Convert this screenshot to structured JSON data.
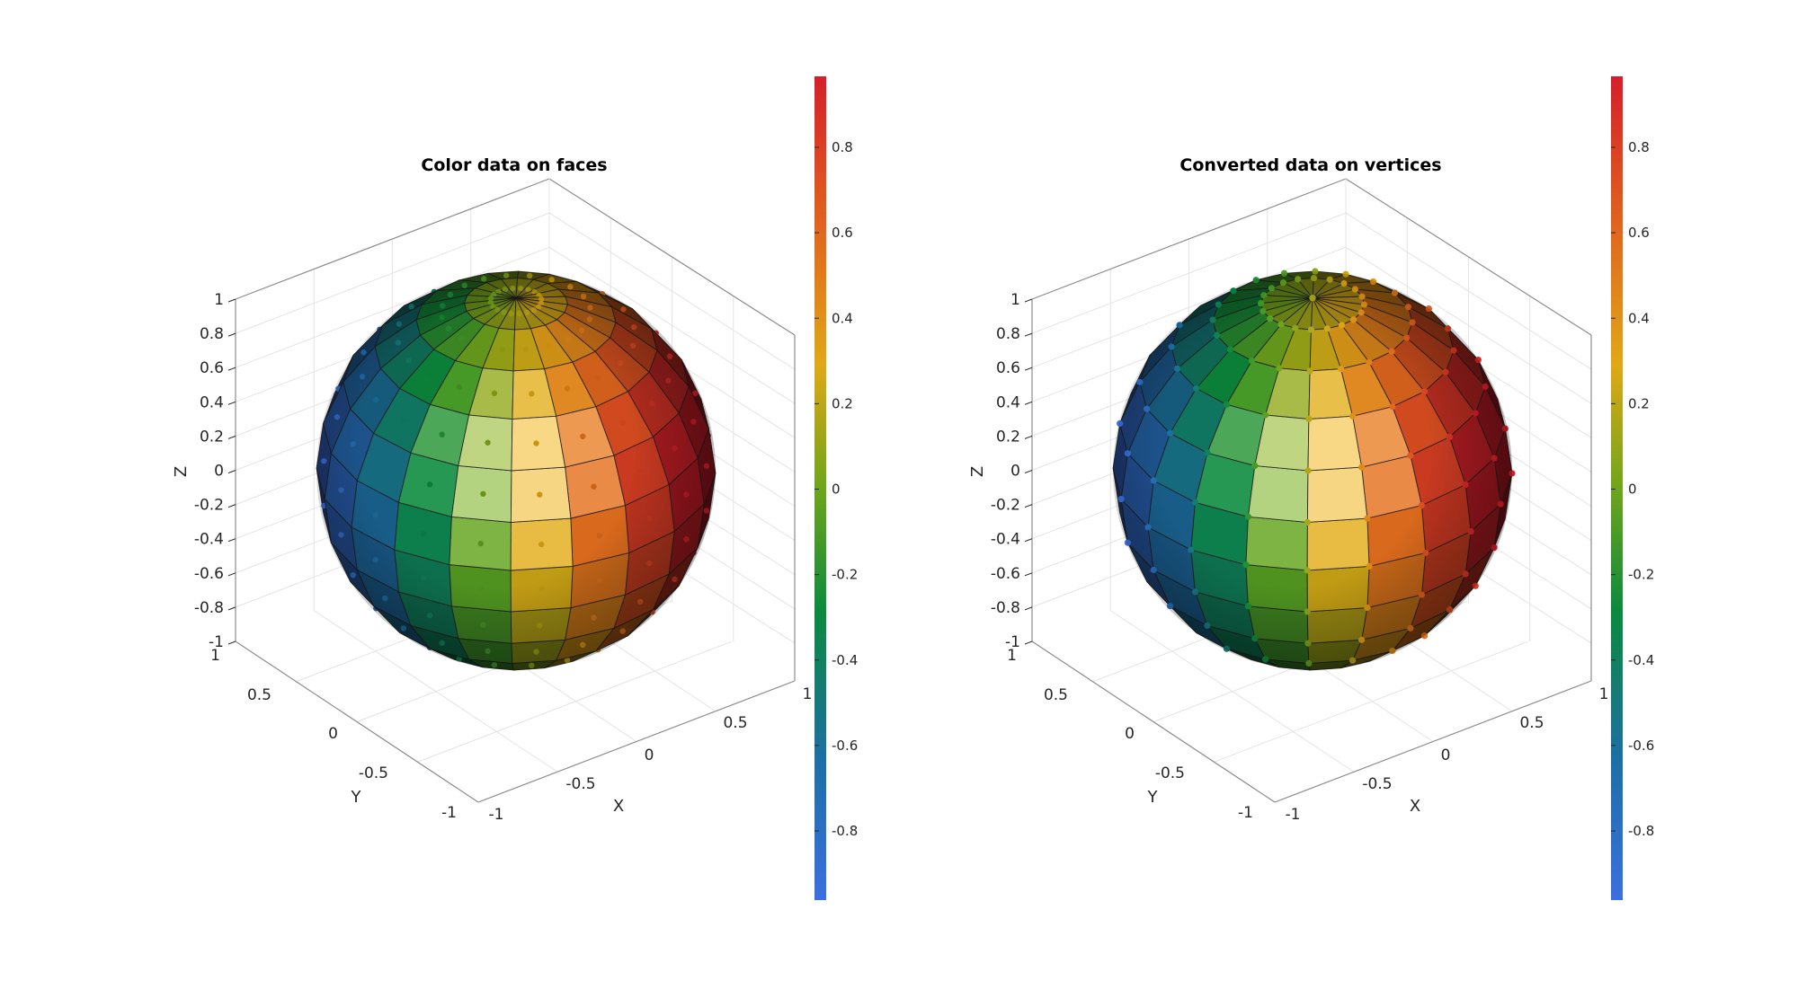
{
  "figure": {
    "panels": [
      {
        "title": "Color data on faces",
        "marker_mode": "faces",
        "axis_labels": {
          "x": "X",
          "y": "Y",
          "z": "Z"
        },
        "z_ticks": [
          "1",
          "0.8",
          "0.6",
          "0.4",
          "0.2",
          "0",
          "-0.2",
          "-0.4",
          "-0.6",
          "-0.8",
          "-1"
        ],
        "x_ticks": [
          "-1",
          "-0.5",
          "0",
          "0.5",
          "1"
        ],
        "y_ticks": [
          "1",
          "0.5",
          "0",
          "-0.5",
          "-1"
        ],
        "colorbar_ticks": [
          "0.8",
          "0.6",
          "0.4",
          "0.2",
          "0",
          "-0.2",
          "-0.4",
          "-0.6",
          "-0.8"
        ]
      },
      {
        "title": "Converted data on vertices",
        "marker_mode": "vertices",
        "axis_labels": {
          "x": "X",
          "y": "Y",
          "z": "Z"
        },
        "z_ticks": [
          "1",
          "0.8",
          "0.6",
          "0.4",
          "0.2",
          "0",
          "-0.2",
          "-0.4",
          "-0.6",
          "-0.8",
          "-1"
        ],
        "x_ticks": [
          "-1",
          "-0.5",
          "0",
          "0.5",
          "1"
        ],
        "y_ticks": [
          "1",
          "0.5",
          "0",
          "-0.5",
          "-1"
        ],
        "colorbar_ticks": [
          "0.8",
          "0.6",
          "0.4",
          "0.2",
          "0",
          "-0.2",
          "-0.4",
          "-0.6",
          "-0.8"
        ]
      }
    ]
  },
  "chart_data": [
    {
      "type": "surface",
      "title": "Color data on faces",
      "xlabel": "X",
      "ylabel": "Y",
      "zlabel": "Z",
      "xlim": [
        -1,
        1
      ],
      "ylim": [
        -1,
        1
      ],
      "zlim": [
        -1,
        1
      ],
      "color_data_location": "faces",
      "colorbar": {
        "clim": [
          -1,
          1
        ],
        "ticks": [
          -0.8,
          -0.6,
          -0.4,
          -0.2,
          0,
          0.2,
          0.4,
          0.6,
          0.8
        ],
        "colormap_stops": [
          "#3b6fe0",
          "#1d6fa5",
          "#0a8a3e",
          "#6fa51a",
          "#e0a815",
          "#e0601e",
          "#d61e2a"
        ]
      },
      "grid": true
    },
    {
      "type": "surface",
      "title": "Converted data on vertices",
      "xlabel": "X",
      "ylabel": "Y",
      "zlabel": "Z",
      "xlim": [
        -1,
        1
      ],
      "ylim": [
        -1,
        1
      ],
      "zlim": [
        -1,
        1
      ],
      "color_data_location": "vertices",
      "colorbar": {
        "clim": [
          -1,
          1
        ],
        "ticks": [
          -0.8,
          -0.6,
          -0.4,
          -0.2,
          0,
          0.2,
          0.4,
          0.6,
          0.8
        ],
        "colormap_stops": [
          "#3b6fe0",
          "#1d6fa5",
          "#0a8a3e",
          "#6fa51a",
          "#e0a815",
          "#e0601e",
          "#d61e2a"
        ]
      },
      "grid": true
    }
  ]
}
